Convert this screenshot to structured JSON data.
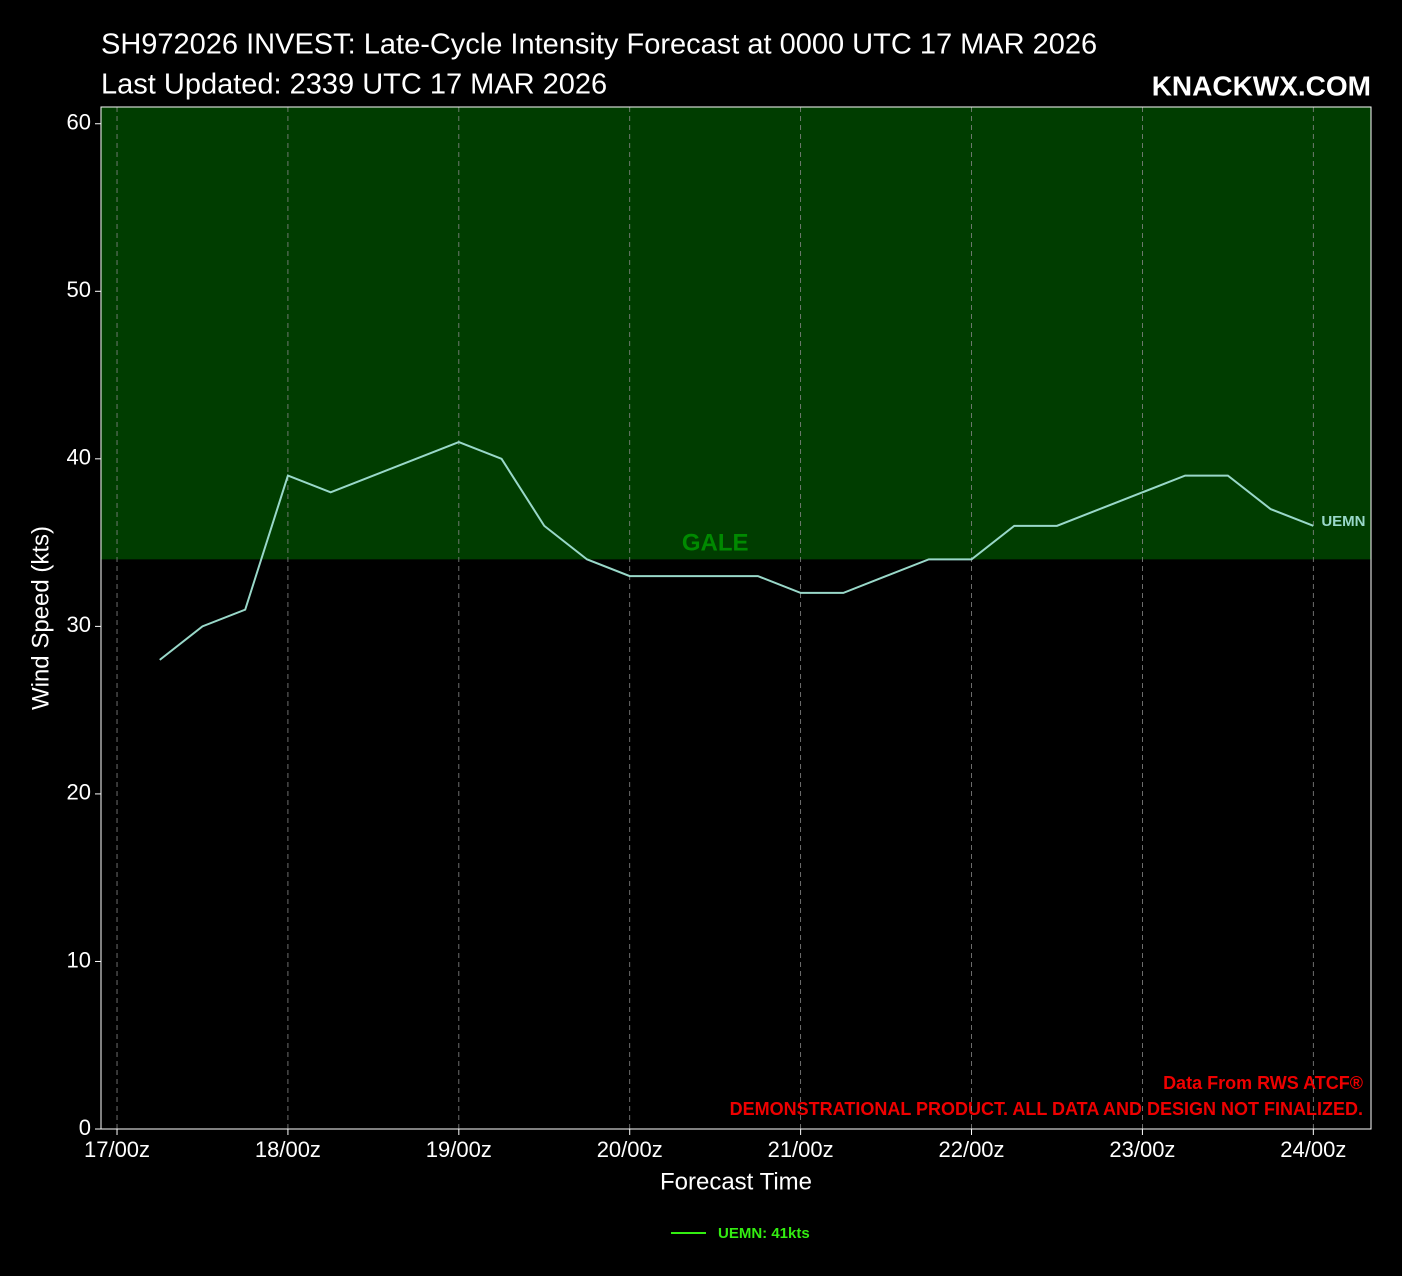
{
  "chart_data": {
    "type": "line",
    "title": "SH972026 INVEST: Late-Cycle Intensity Forecast at 0000 UTC 17 MAR 2026",
    "subtitle": "Last Updated: 2339 UTC 17 MAR 2026",
    "brand": "KNACKWX.COM",
    "x_label": "Forecast Time",
    "y_label": "Wind Speed (kts)",
    "x": [
      6,
      12,
      18,
      24,
      30,
      36,
      42,
      48,
      54,
      60,
      66,
      72,
      78,
      84,
      90,
      96,
      102,
      108,
      114,
      120,
      126,
      132,
      138,
      144,
      150,
      156,
      162,
      168
    ],
    "series": [
      {
        "name": "UEMN",
        "color": "#99d8c9",
        "values": [
          28,
          30,
          31,
          39,
          38,
          39,
          40,
          41,
          40,
          36,
          34,
          33,
          33,
          33,
          33,
          32,
          32,
          33,
          34,
          34,
          36,
          36,
          37,
          38,
          39,
          39,
          37,
          36
        ]
      }
    ],
    "legend_label": "UEMN: 41kts",
    "legend_color": "#33ee11",
    "xlim": [
      -2.25,
      176.1
    ],
    "ylim": [
      0,
      61
    ],
    "xticks": [
      {
        "value": 0,
        "label": "17/00z"
      },
      {
        "value": 24,
        "label": "18/00z"
      },
      {
        "value": 48,
        "label": "19/00z"
      },
      {
        "value": 72,
        "label": "20/00z"
      },
      {
        "value": 96,
        "label": "21/00z"
      },
      {
        "value": 120,
        "label": "22/00z"
      },
      {
        "value": 144,
        "label": "23/00z"
      },
      {
        "value": 168,
        "label": "24/00z"
      }
    ],
    "yticks": [
      0,
      10,
      20,
      30,
      40,
      50,
      60
    ],
    "grid": true,
    "bands": [
      {
        "label": "GALE",
        "from": 34,
        "color": "#003d00",
        "text_color": "#008a00",
        "label_x": 84
      }
    ],
    "annotations": [
      "Data From RWS ATCF®",
      "DEMONSTRATIONAL PRODUCT. ALL DATA AND DESIGN NOT FINALIZED."
    ]
  }
}
